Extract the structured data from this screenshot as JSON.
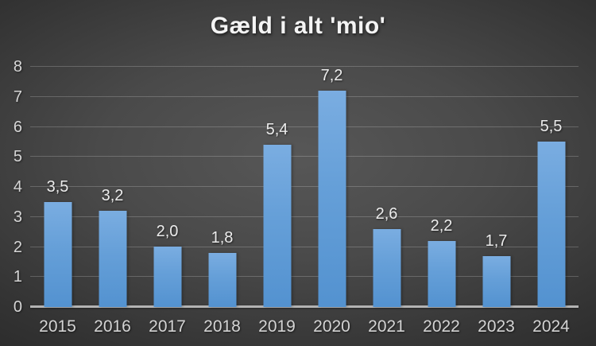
{
  "chart_data": {
    "type": "bar",
    "title": "Gæld i alt 'mio'",
    "categories": [
      "2015",
      "2016",
      "2017",
      "2018",
      "2019",
      "2020",
      "2021",
      "2022",
      "2023",
      "2024"
    ],
    "values": [
      3.5,
      3.2,
      2.0,
      1.8,
      5.4,
      7.2,
      2.6,
      2.2,
      1.7,
      5.5
    ],
    "value_labels": [
      "3,5",
      "3,2",
      "2,0",
      "1,8",
      "5,4",
      "7,2",
      "2,6",
      "2,2",
      "1,7",
      "5,5"
    ],
    "xlabel": "",
    "ylabel": "",
    "ylim": [
      0,
      8
    ],
    "yticks": [
      0,
      1,
      2,
      3,
      4,
      5,
      6,
      7,
      8
    ],
    "grid": true,
    "legend": false,
    "colors": {
      "bar_top": "#7aade1",
      "bar_bottom": "#5392d0",
      "background_center": "#575757",
      "background_edge": "#242424",
      "gridline": "rgba(255,255,255,0.20)",
      "axis_line": "#b3b3b3",
      "label_text": "#ececec",
      "tick_text": "#d4d4d4",
      "title_text": "#f4f4f4"
    }
  }
}
